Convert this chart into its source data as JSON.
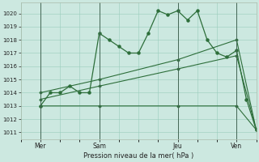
{
  "xlabel": "Pression niveau de la mer( hPa )",
  "ylim": [
    1010.5,
    1020.8
  ],
  "yticks": [
    1011,
    1012,
    1013,
    1014,
    1015,
    1016,
    1017,
    1018,
    1019,
    1020
  ],
  "xlim": [
    0,
    12
  ],
  "day_positions": [
    1,
    4,
    8,
    11
  ],
  "day_labels": [
    "Mer",
    "Sam",
    "Jeu",
    "Ven"
  ],
  "vline_positions": [
    1,
    4,
    8,
    11
  ],
  "background_color": "#cce8e0",
  "grid_color": "#99ccbb",
  "line_color": "#2d6e3a",
  "series1_x": [
    1,
    1.5,
    2,
    2.5,
    3,
    3.5,
    4,
    4.5,
    5,
    5.5,
    6,
    6.5,
    7,
    7.5,
    8,
    8.5,
    9,
    9.5,
    10,
    10.5,
    11,
    11.5,
    12
  ],
  "series1_y": [
    1013,
    1014,
    1014,
    1014.5,
    1014,
    1014,
    1018.5,
    1018,
    1017.5,
    1017,
    1017,
    1018.5,
    1020.2,
    1019.9,
    1020.2,
    1019.5,
    1020.2,
    1018,
    1017,
    1016.7,
    1017.2,
    1013.5,
    1011.2
  ],
  "series2_x": [
    1,
    4,
    8,
    11,
    12
  ],
  "series2_y": [
    1014,
    1015,
    1016.5,
    1018,
    1011.2
  ],
  "series3_x": [
    1,
    4,
    8,
    11,
    12
  ],
  "series3_y": [
    1013.5,
    1014.5,
    1015.8,
    1016.8,
    1011.2
  ],
  "series4_x": [
    1,
    4,
    8,
    11,
    12
  ],
  "series4_y": [
    1013,
    1013,
    1013,
    1013,
    1011.2
  ]
}
